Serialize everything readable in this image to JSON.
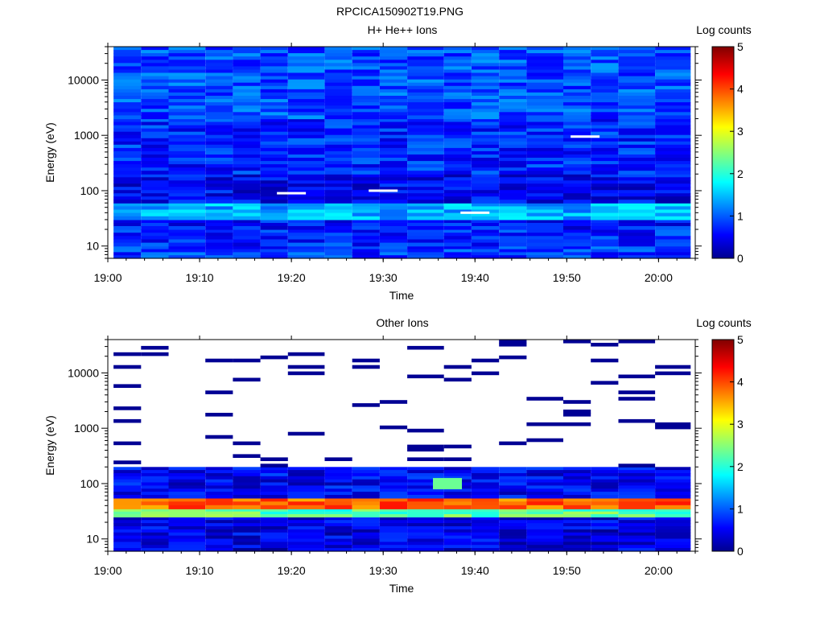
{
  "figure_title": "RPCICA150902T19.PNG",
  "colorbar": {
    "label": "Log counts",
    "ticks": [
      "0",
      "1",
      "2",
      "3",
      "4",
      "5"
    ],
    "range": [
      0,
      5
    ],
    "colormap": "jet"
  },
  "chart_data": [
    {
      "type": "heatmap",
      "title": "H+ He++ Ions",
      "xlabel": "Time",
      "ylabel": "Energy (eV)",
      "xticks": [
        "19:00",
        "19:10",
        "19:20",
        "19:30",
        "19:40",
        "19:50",
        "20:00"
      ],
      "yticks": [
        "10",
        "100",
        "1000",
        "10000"
      ],
      "yscale": "log",
      "x_range": [
        "19:00",
        "20:04"
      ],
      "ylim": [
        6,
        40000
      ],
      "time_bins_start": [
        "19:01",
        "19:04",
        "19:07",
        "19:11",
        "19:14",
        "19:17",
        "19:20",
        "19:24",
        "19:27",
        "19:30",
        "19:33",
        "19:37",
        "19:40",
        "19:43",
        "19:46",
        "19:50",
        "19:53",
        "19:56",
        "20:00"
      ],
      "energy_bands": [
        {
          "energy_ev": [
            6,
            10
          ],
          "log_counts": 0.9
        },
        {
          "energy_ev": [
            10,
            20
          ],
          "log_counts": 0.8
        },
        {
          "energy_ev": [
            20,
            30
          ],
          "log_counts": 0.7
        },
        {
          "energy_ev": [
            30,
            60
          ],
          "log_counts": 1.5
        },
        {
          "energy_ev": [
            60,
            200
          ],
          "log_counts": 0.6
        },
        {
          "energy_ev": [
            200,
            2000
          ],
          "log_counts": 0.8
        },
        {
          "energy_ev": [
            2000,
            40000
          ],
          "log_counts": 1.0
        }
      ],
      "white_gaps": [
        {
          "time": "19:20",
          "energy_ev": 90
        },
        {
          "time": "19:30",
          "energy_ev": 100
        },
        {
          "time": "19:40",
          "energy_ev": 40
        },
        {
          "time": "19:52",
          "energy_ev": 950
        }
      ]
    },
    {
      "type": "heatmap",
      "title": "Other Ions",
      "xlabel": "Time",
      "ylabel": "Energy (eV)",
      "xticks": [
        "19:00",
        "19:10",
        "19:20",
        "19:30",
        "19:40",
        "19:50",
        "20:00"
      ],
      "yticks": [
        "10",
        "100",
        "1000",
        "10000"
      ],
      "yscale": "log",
      "x_range": [
        "19:00",
        "20:04"
      ],
      "ylim": [
        6,
        40000
      ],
      "time_bins_start": [
        "19:01",
        "19:04",
        "19:07",
        "19:11",
        "19:14",
        "19:17",
        "19:20",
        "19:24",
        "19:27",
        "19:30",
        "19:33",
        "19:37",
        "19:40",
        "19:43",
        "19:46",
        "19:50",
        "19:53",
        "19:56",
        "20:00"
      ],
      "energy_bands": [
        {
          "energy_ev": [
            6,
            25
          ],
          "log_counts": 0.5
        },
        {
          "energy_ev": [
            25,
            35
          ],
          "log_counts": 2.3
        },
        {
          "energy_ev": [
            35,
            55
          ],
          "log_counts": 3.9
        },
        {
          "energy_ev": [
            55,
            200
          ],
          "log_counts": 0.6
        },
        {
          "energy_ev": [
            200,
            40000
          ],
          "log_counts": 0.2,
          "note": "sparse"
        }
      ],
      "peak": {
        "time": "19:37",
        "energy_ev": 90,
        "log_counts": 2.4
      }
    }
  ]
}
